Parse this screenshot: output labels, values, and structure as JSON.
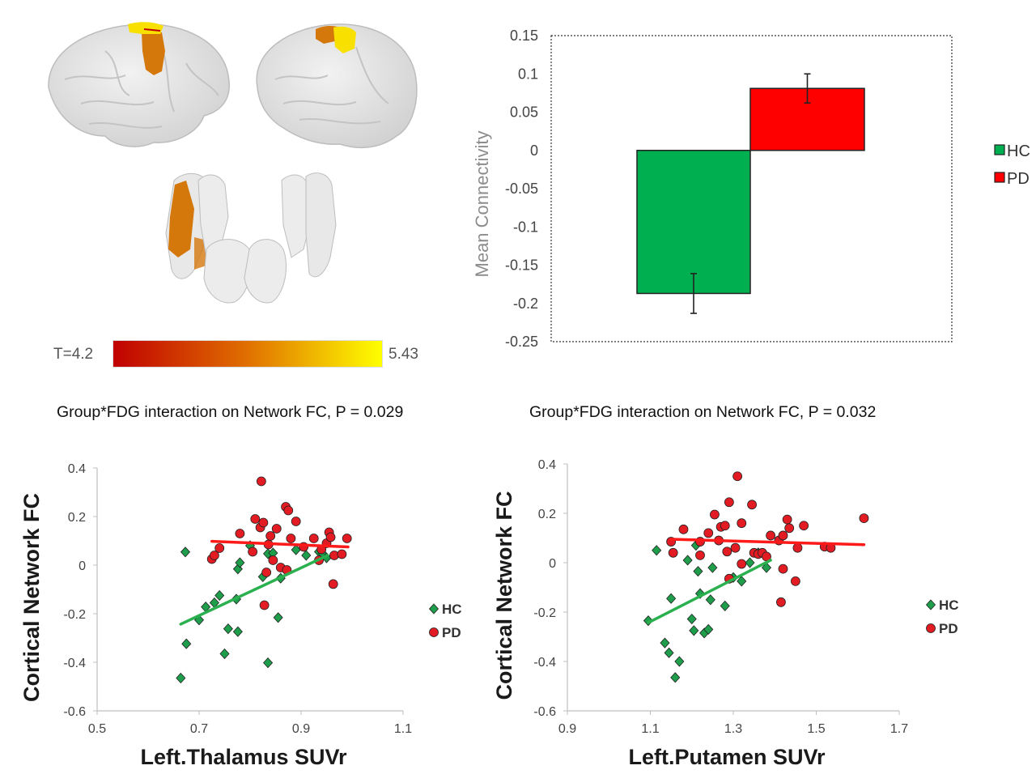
{
  "colorbar": {
    "min_label": "T=4.2",
    "max_label": "5.43",
    "colors": [
      "#c00000",
      "#e07000",
      "#ffff00"
    ]
  },
  "brain_colors": {
    "surface": "#e6e6e6",
    "edge": "#bfbfbf",
    "orange": "#d4780c",
    "yellow": "#f8e000"
  },
  "chart_data": [
    {
      "type": "bar",
      "title": "",
      "ylabel": "Mean Connectivity",
      "xlabel": "",
      "categories": [
        "HC",
        "PD"
      ],
      "values": [
        -0.187,
        0.081
      ],
      "errors": [
        0.026,
        0.019
      ],
      "colors": [
        "#00b050",
        "#ff0000"
      ],
      "ylim": [
        -0.25,
        0.15
      ],
      "yticks": [
        0.15,
        0.1,
        0.05,
        0,
        -0.05,
        -0.1,
        -0.15,
        -0.2,
        -0.25
      ],
      "ytick_labels": [
        "0.15",
        "0.1",
        "0.05",
        "0",
        "-0.05",
        "-0.1",
        "-0.15",
        "-0.2",
        "-0.25"
      ],
      "legend": [
        "HC",
        "PD"
      ],
      "legend_position": "right",
      "frame": "dotted"
    },
    {
      "type": "scatter",
      "title": "Group*FDG interaction on Network FC, P = 0.029",
      "xlabel": "Left.Thalamus SUVr",
      "ylabel": "Cortical Network FC",
      "xlim": [
        0.5,
        1.1
      ],
      "ylim": [
        -0.6,
        0.4
      ],
      "xticks": [
        0.5,
        0.7,
        0.9,
        1.1
      ],
      "xtick_labels": [
        "0.5",
        "0.7",
        "0.9",
        "1.1"
      ],
      "yticks": [
        0.4,
        0.2,
        0,
        -0.2,
        -0.4,
        -0.6
      ],
      "ytick_labels": [
        "0.4",
        "0.2",
        "0",
        "-0.2",
        "-0.4",
        "-0.6"
      ],
      "legend_position": "right",
      "series": [
        {
          "name": "HC",
          "marker": "diamond",
          "color": "#1e9e4a",
          "points": [
            [
              0.664,
              -0.465
            ],
            [
              0.673,
              0.054
            ],
            [
              0.675,
              -0.324
            ],
            [
              0.7,
              -0.226
            ],
            [
              0.713,
              -0.172
            ],
            [
              0.73,
              -0.155
            ],
            [
              0.74,
              -0.125
            ],
            [
              0.75,
              -0.365
            ],
            [
              0.757,
              -0.262
            ],
            [
              0.773,
              -0.14
            ],
            [
              0.776,
              -0.274
            ],
            [
              0.776,
              -0.016
            ],
            [
              0.78,
              0.01
            ],
            [
              0.8,
              0.08
            ],
            [
              0.825,
              -0.048
            ],
            [
              0.835,
              -0.402
            ],
            [
              0.835,
              0.047
            ],
            [
              0.845,
              0.05
            ],
            [
              0.855,
              -0.216
            ],
            [
              0.86,
              -0.054
            ],
            [
              0.89,
              0.063
            ],
            [
              0.91,
              0.04
            ],
            [
              0.935,
              0.055
            ],
            [
              0.942,
              0.048
            ],
            [
              0.95,
              0.03
            ]
          ],
          "fit": [
            [
              0.664,
              -0.243
            ],
            [
              0.952,
              0.04
            ]
          ],
          "fit_color": "#2bb04f"
        },
        {
          "name": "PD",
          "marker": "circle",
          "color": "#e31b23",
          "points": [
            [
              0.725,
              0.025
            ],
            [
              0.73,
              0.04
            ],
            [
              0.74,
              0.07
            ],
            [
              0.78,
              0.13
            ],
            [
              0.805,
              0.055
            ],
            [
              0.81,
              0.19
            ],
            [
              0.82,
              0.155
            ],
            [
              0.822,
              0.345
            ],
            [
              0.826,
              0.175
            ],
            [
              0.828,
              -0.165
            ],
            [
              0.832,
              -0.03
            ],
            [
              0.836,
              0.085
            ],
            [
              0.84,
              0.12
            ],
            [
              0.845,
              0.02
            ],
            [
              0.852,
              0.15
            ],
            [
              0.86,
              -0.01
            ],
            [
              0.87,
              0.24
            ],
            [
              0.872,
              -0.02
            ],
            [
              0.875,
              0.225
            ],
            [
              0.88,
              0.11
            ],
            [
              0.89,
              0.18
            ],
            [
              0.905,
              0.075
            ],
            [
              0.925,
              0.11
            ],
            [
              0.935,
              0.02
            ],
            [
              0.94,
              0.065
            ],
            [
              0.95,
              0.09
            ],
            [
              0.955,
              0.135
            ],
            [
              0.958,
              0.115
            ],
            [
              0.963,
              -0.078
            ],
            [
              0.965,
              0.04
            ],
            [
              0.98,
              0.045
            ],
            [
              0.99,
              0.11
            ]
          ],
          "fit": [
            [
              0.725,
              0.098
            ],
            [
              0.992,
              0.075
            ]
          ],
          "fit_color": "#ff1a1a"
        }
      ]
    },
    {
      "type": "scatter",
      "title": "Group*FDG interaction on Network FC, P = 0.032",
      "xlabel": "Left.Putamen SUVr",
      "ylabel": "Cortical Network FC",
      "xlim": [
        0.9,
        1.7
      ],
      "ylim": [
        -0.6,
        0.4
      ],
      "xticks": [
        0.9,
        1.1,
        1.3,
        1.5,
        1.7
      ],
      "xtick_labels": [
        "0.9",
        "1.1",
        "1.3",
        "1.5",
        "1.7"
      ],
      "yticks": [
        0.4,
        0.2,
        0,
        -0.2,
        -0.4,
        -0.6
      ],
      "ytick_labels": [
        "0.4",
        "0.2",
        "0",
        "-0.2",
        "-0.4",
        "-0.6"
      ],
      "legend_position": "right",
      "series": [
        {
          "name": "HC",
          "marker": "diamond",
          "color": "#1e9e4a",
          "points": [
            [
              1.095,
              -0.235
            ],
            [
              1.115,
              0.05
            ],
            [
              1.135,
              -0.325
            ],
            [
              1.145,
              -0.365
            ],
            [
              1.15,
              -0.145
            ],
            [
              1.16,
              -0.465
            ],
            [
              1.17,
              -0.4
            ],
            [
              1.19,
              0.01
            ],
            [
              1.2,
              -0.228
            ],
            [
              1.205,
              -0.275
            ],
            [
              1.21,
              0.07
            ],
            [
              1.215,
              -0.035
            ],
            [
              1.22,
              -0.125
            ],
            [
              1.23,
              -0.285
            ],
            [
              1.24,
              -0.27
            ],
            [
              1.245,
              -0.15
            ],
            [
              1.25,
              -0.02
            ],
            [
              1.28,
              -0.175
            ],
            [
              1.3,
              -0.06
            ],
            [
              1.32,
              -0.075
            ],
            [
              1.34,
              0.0
            ],
            [
              1.36,
              0.04
            ],
            [
              1.38,
              -0.02
            ]
          ],
          "fit": [
            [
              1.095,
              -0.243
            ],
            [
              1.39,
              0.01
            ]
          ],
          "fit_color": "#2bb04f"
        },
        {
          "name": "PD",
          "marker": "circle",
          "color": "#e31b23",
          "points": [
            [
              1.15,
              0.085
            ],
            [
              1.155,
              0.04
            ],
            [
              1.18,
              0.135
            ],
            [
              1.22,
              0.085
            ],
            [
              1.22,
              0.03
            ],
            [
              1.24,
              0.12
            ],
            [
              1.255,
              0.195
            ],
            [
              1.265,
              0.09
            ],
            [
              1.27,
              0.145
            ],
            [
              1.28,
              0.15
            ],
            [
              1.285,
              0.045
            ],
            [
              1.29,
              -0.065
            ],
            [
              1.29,
              0.245
            ],
            [
              1.305,
              0.06
            ],
            [
              1.31,
              0.35
            ],
            [
              1.32,
              0.16
            ],
            [
              1.32,
              -0.005
            ],
            [
              1.345,
              0.235
            ],
            [
              1.35,
              0.04
            ],
            [
              1.36,
              0.035
            ],
            [
              1.37,
              0.04
            ],
            [
              1.38,
              0.025
            ],
            [
              1.39,
              0.11
            ],
            [
              1.41,
              0.09
            ],
            [
              1.415,
              -0.16
            ],
            [
              1.42,
              0.11
            ],
            [
              1.42,
              -0.025
            ],
            [
              1.43,
              0.175
            ],
            [
              1.435,
              0.14
            ],
            [
              1.45,
              -0.075
            ],
            [
              1.455,
              0.06
            ],
            [
              1.47,
              0.15
            ],
            [
              1.52,
              0.065
            ],
            [
              1.535,
              0.06
            ],
            [
              1.615,
              0.18
            ]
          ],
          "fit": [
            [
              1.15,
              0.095
            ],
            [
              1.615,
              0.073
            ]
          ],
          "fit_color": "#ff1a1a"
        }
      ]
    }
  ]
}
